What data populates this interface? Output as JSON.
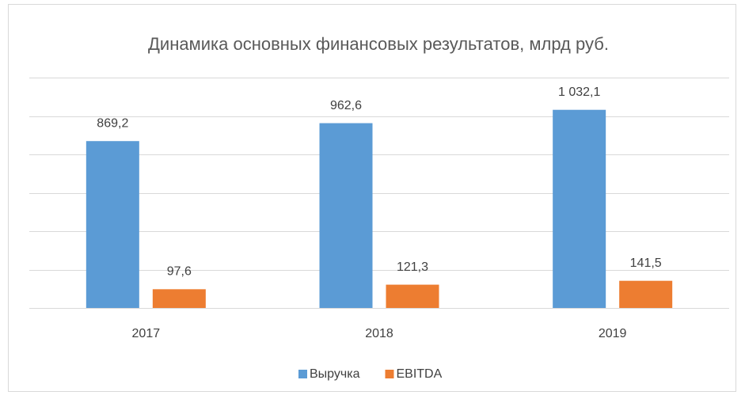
{
  "chart_data": {
    "type": "bar",
    "title": "Динамика основных финансовых результатов, млрд руб.",
    "categories": [
      "2017",
      "2018",
      "2019"
    ],
    "series": [
      {
        "name": "Выручка",
        "color": "#5b9bd5",
        "values": [
          869.2,
          962.6,
          1032.1
        ],
        "value_labels": [
          "869,2",
          "962,6",
          "1 032,1"
        ]
      },
      {
        "name": "EBITDA",
        "color": "#ed7d31",
        "values": [
          97.6,
          121.3,
          141.5
        ],
        "value_labels": [
          "97,6",
          "121,3",
          "141,5"
        ]
      }
    ],
    "ylim": [
      0,
      1200
    ],
    "yticks": [
      0,
      200,
      400,
      600,
      800,
      1000,
      1200
    ],
    "grid": true,
    "legend": "bottom"
  }
}
